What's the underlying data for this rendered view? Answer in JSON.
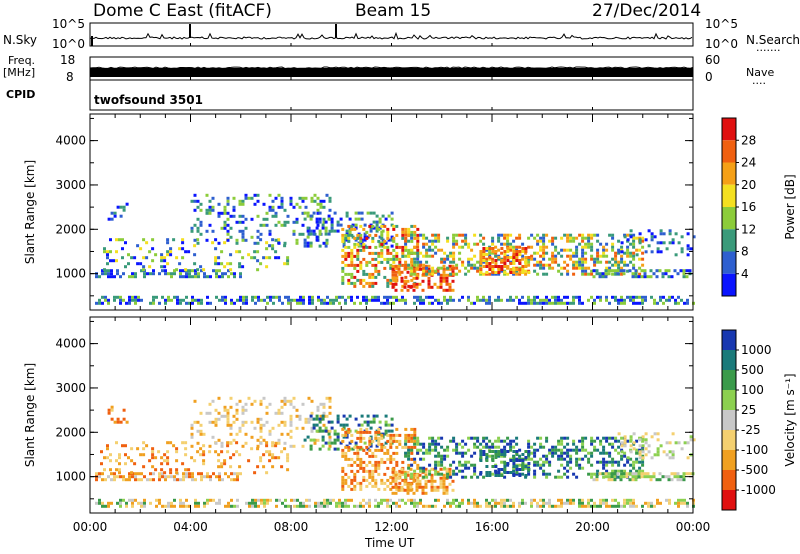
{
  "header": {
    "station": "Dome C East (fitACF)",
    "beam": "Beam 15",
    "date": "27/Dec/2014"
  },
  "side_labels": {
    "nsky": "N.Sky",
    "freq": "Freq.",
    "freq_unit": "[MHz]",
    "cpid": "CPID",
    "nsearch": "N.Search",
    "nsearch_dots": "·······",
    "nave": "Nave",
    "nave_dots": "····"
  },
  "cpid_name": "twofsound 3501",
  "colors": {
    "power": [
      "#0a14ff",
      "#2e5fcf",
      "#3a9a7a",
      "#8ccc3a",
      "#f4e020",
      "#f5a017",
      "#f06010",
      "#e01010"
    ],
    "velocity": [
      "#e01010",
      "#f06010",
      "#f0a020",
      "#f4d070",
      "#c8c8c8",
      "#8cd050",
      "#3a9a4a",
      "#1a7a7a",
      "#1838b0"
    ]
  },
  "chart_data": [
    {
      "type": "line",
      "title": "N.Sky / N.Search",
      "ylabel_left": "N.Sky",
      "ylabel_right": "N.Search",
      "left_ticks": [
        "10^5",
        "10^0"
      ],
      "right_ticks": [
        "10^5",
        "10^0"
      ],
      "x": [
        "00:00",
        "04:00",
        "08:00",
        "12:00",
        "16:00",
        "20:00",
        "00:00"
      ],
      "note": "noise traces near baseline with occasional spikes near 04:00 and 10:00"
    },
    {
      "type": "area",
      "title": "Freq / Nave",
      "ylabel_left": "Freq. [MHz]",
      "ylabel_right": "Nave",
      "left_ticks": [
        "18",
        "8"
      ],
      "right_ticks": [
        "60",
        "0"
      ],
      "x": [
        "00:00",
        "04:00",
        "08:00",
        "12:00",
        "16:00",
        "20:00",
        "00:00"
      ]
    },
    {
      "type": "heatmap",
      "title": "Power",
      "xlabel": "Time UT",
      "ylabel": "Slant Range [km]",
      "x_ticks": [
        "00:00",
        "04:00",
        "08:00",
        "12:00",
        "16:00",
        "20:00",
        "00:00"
      ],
      "y_ticks": [
        1000,
        2000,
        3000,
        4000
      ],
      "ylim": [
        180,
        4600
      ],
      "colorbar_label": "Power [dB]",
      "colorbar_ticks": [
        4,
        8,
        12,
        16,
        20,
        24,
        28
      ]
    },
    {
      "type": "heatmap",
      "title": "Velocity",
      "xlabel": "Time UT",
      "ylabel": "Slant Range [km]",
      "x_ticks": [
        "00:00",
        "04:00",
        "08:00",
        "12:00",
        "16:00",
        "20:00",
        "00:00"
      ],
      "y_ticks": [
        1000,
        2000,
        3000,
        4000
      ],
      "ylim": [
        180,
        4600
      ],
      "colorbar_label": "Velocity [m s⁻¹]",
      "colorbar_ticks": [
        "1000",
        "500",
        "100",
        "25",
        "-25",
        "-100",
        "-500",
        "-1000"
      ]
    }
  ],
  "axis": {
    "x_title": "Time UT"
  }
}
